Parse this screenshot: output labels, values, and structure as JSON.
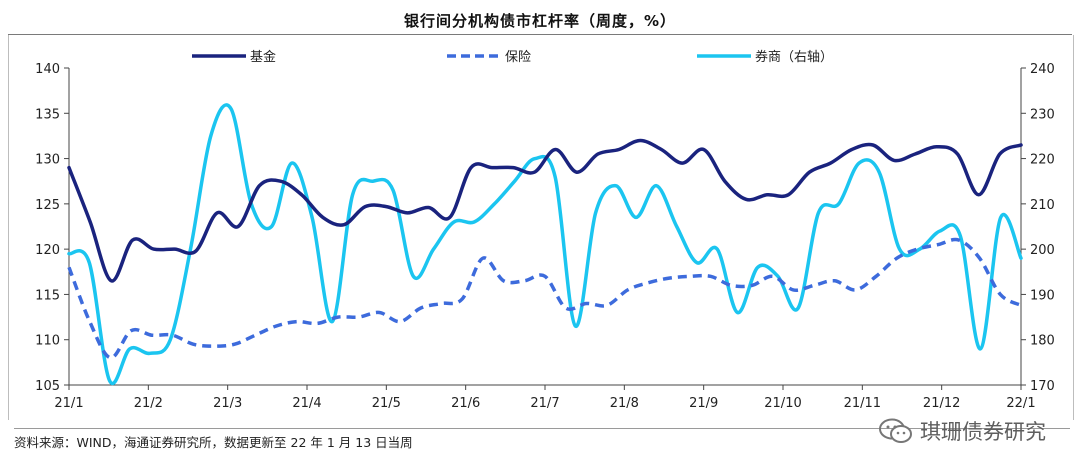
{
  "title": "银行间分机构债市杠杆率（周度，%）",
  "source": "资料来源：WIND，海通证券研究所，数据更新至 22 年 1 月 13 日当周",
  "watermark": "琪珊债券研究",
  "chart_data": {
    "type": "line",
    "x_ticks": [
      "21/1",
      "21/2",
      "21/3",
      "21/4",
      "21/5",
      "21/6",
      "21/7",
      "21/8",
      "21/9",
      "21/10",
      "21/11",
      "21/12",
      "22/1"
    ],
    "ylim_left": [
      105,
      140
    ],
    "yticks_left": [
      105,
      110,
      115,
      120,
      125,
      130,
      135,
      140
    ],
    "ylim_right": [
      170,
      240
    ],
    "yticks_right": [
      170,
      180,
      190,
      200,
      210,
      220,
      230,
      240
    ],
    "legend_position": "top",
    "series": [
      {
        "name": "基金",
        "axis": "left",
        "style": "solid",
        "color": "#1a237e",
        "width": 3.5,
        "values": [
          129,
          123,
          116.5,
          121,
          120,
          120,
          119.8,
          124,
          122.5,
          127,
          127.5,
          126,
          123.5,
          122.7,
          124.7,
          124.7,
          124,
          124.6,
          123.5,
          129,
          129,
          129,
          128.5,
          131,
          128.5,
          130.5,
          131,
          132,
          131,
          129.5,
          131,
          127.5,
          125.5,
          126,
          126,
          128.5,
          129.5,
          131,
          131.5,
          129.8,
          130.5,
          131.3,
          130.5,
          126,
          130.5,
          131.5
        ]
      },
      {
        "name": "保险",
        "axis": "left",
        "style": "dashed",
        "color": "#3d6bdc",
        "width": 3.5,
        "values": [
          118,
          112,
          108,
          111,
          110.5,
          110.5,
          109.5,
          109.3,
          109.5,
          110.5,
          111.5,
          112,
          111.8,
          112.5,
          112.5,
          113,
          112,
          113.5,
          114,
          114.5,
          119,
          116.5,
          116.5,
          117,
          113.5,
          114,
          113.8,
          115.5,
          116.3,
          116.8,
          117,
          117,
          116,
          116,
          117,
          115.5,
          116,
          116.5,
          115.5,
          117,
          119,
          120,
          120.5,
          121,
          119,
          115,
          113.8
        ]
      },
      {
        "name": "券商（右轴）",
        "axis": "right",
        "style": "solid",
        "color": "#1bc5f0",
        "width": 3.5,
        "values": [
          199,
          197,
          171,
          178,
          177,
          180,
          200,
          225,
          231,
          210,
          205,
          219,
          207,
          184,
          212,
          215,
          213,
          194,
          200,
          206,
          206,
          210,
          215,
          220,
          216,
          183,
          208,
          214,
          207,
          214,
          205,
          197,
          200,
          186,
          196,
          194,
          187,
          208,
          210,
          219,
          217,
          200,
          200,
          204,
          203,
          178,
          207,
          198
        ]
      }
    ]
  }
}
